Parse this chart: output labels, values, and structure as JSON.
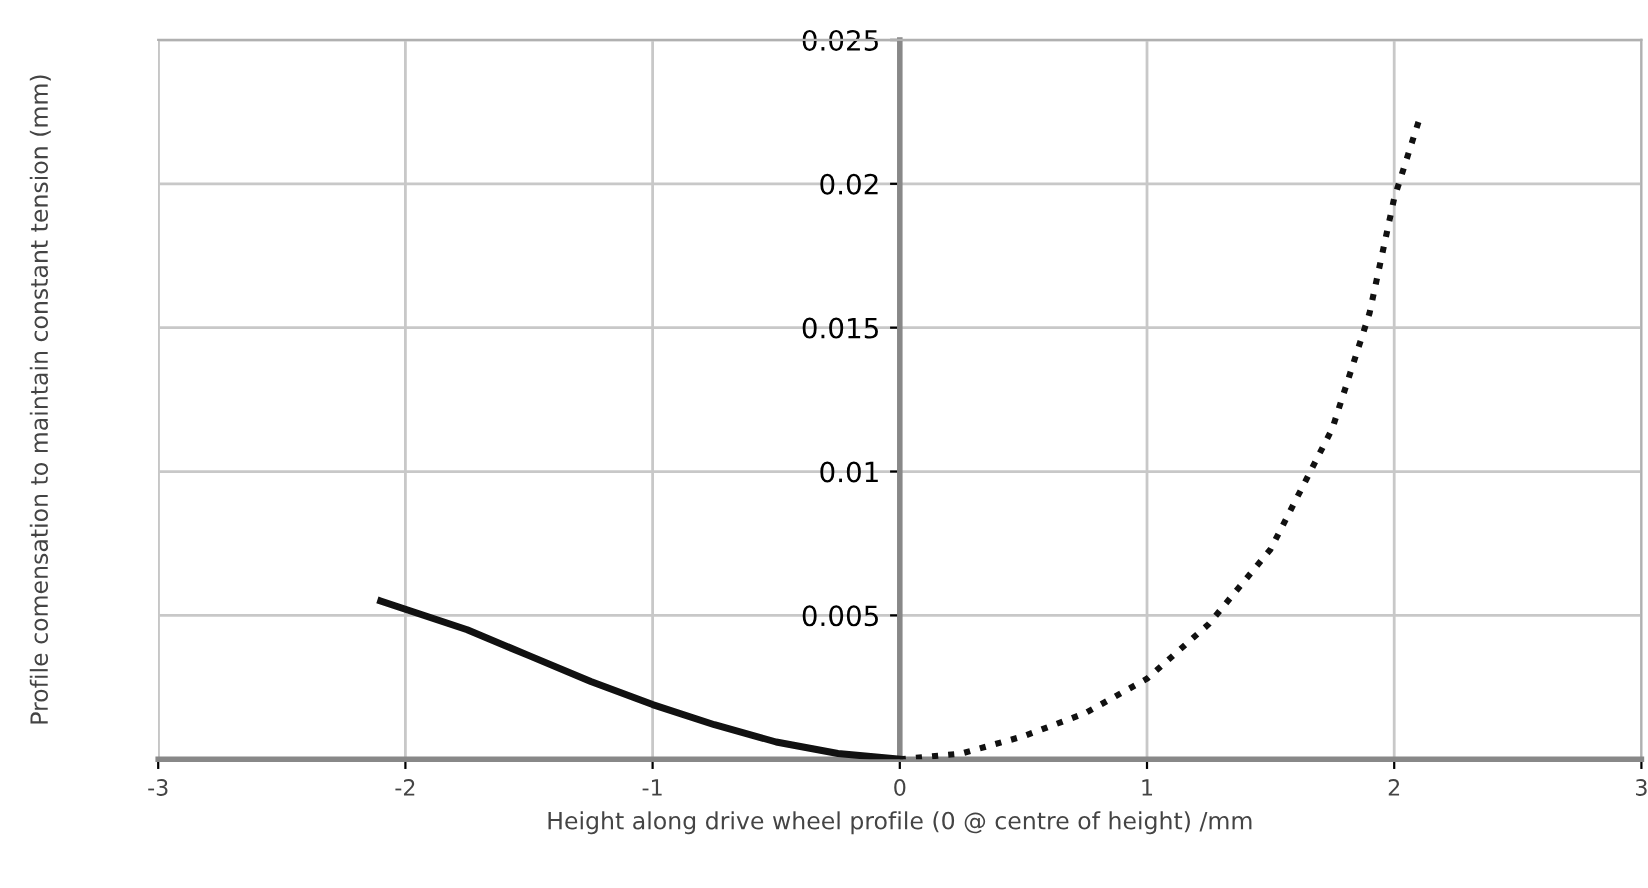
{
  "chart_data": {
    "type": "line",
    "xlabel": "Height along drive wheel profile (0 @ centre of height) /mm",
    "ylabel": "Profile comensation to maintain constant tension (mm)",
    "xlim": [
      -3,
      3
    ],
    "ylim": [
      0,
      0.025
    ],
    "xticks": [
      -3,
      -2,
      -1,
      0,
      1,
      2,
      3
    ],
    "yticks": [
      0.005,
      0.01,
      0.015,
      0.02,
      0.025
    ],
    "grid": true,
    "series": [
      {
        "color": "#111111",
        "line_style": "solid",
        "x": [
          -2.1,
          -1.75,
          -1.5,
          -1.25,
          -1,
          -0.75,
          -0.5,
          -0.25,
          0
        ],
        "values": [
          0.0055,
          0.0045,
          0.0036,
          0.0027,
          0.0019,
          0.0012,
          0.0006,
          0.0002,
          0
        ]
      },
      {
        "color": "#111111",
        "line_style": "dotted",
        "x": [
          0,
          0.25,
          0.5,
          0.75,
          1,
          1.25,
          1.5,
          1.75,
          1.9,
          2,
          2.1
        ],
        "values": [
          0,
          0.0002,
          0.0008,
          0.0016,
          0.0028,
          0.0047,
          0.0073,
          0.0115,
          0.0155,
          0.0195,
          0.0222
        ]
      }
    ]
  }
}
